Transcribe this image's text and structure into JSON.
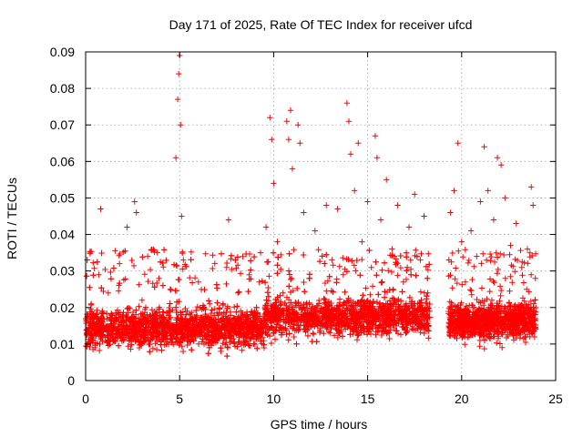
{
  "chart_data": {
    "type": "scatter",
    "title": "Day 171 of 2025, Rate Of TEC Index for receiver ufcd",
    "xlabel": "GPS time / hours",
    "ylabel": "ROTI / TECUs",
    "xlim": [
      0,
      25
    ],
    "ylim": [
      0,
      0.09
    ],
    "x_ticks": [
      0,
      5,
      10,
      15,
      20,
      25
    ],
    "x_tick_labels": [
      "0",
      "5",
      "10",
      "15",
      "20",
      "25"
    ],
    "y_ticks": [
      0,
      0.01,
      0.02,
      0.03,
      0.04,
      0.05,
      0.06,
      0.07,
      0.08,
      0.09
    ],
    "y_tick_labels": [
      "0",
      "0.01",
      "0.02",
      "0.03",
      "0.04",
      "0.05",
      "0.06",
      "0.07",
      "0.08",
      "0.09"
    ],
    "grid": true,
    "marker": "+",
    "color": "#ff0000",
    "data_gap_hours": [
      18.3,
      19.3
    ],
    "series": [
      {
        "name": "ROTI",
        "points": [
          [
            0.1,
            0.013
          ],
          [
            0.3,
            0.021
          ],
          [
            0.5,
            0.009
          ],
          [
            0.7,
            0.029
          ],
          [
            0.8,
            0.047
          ],
          [
            0.9,
            0.016
          ],
          [
            1.2,
            0.024
          ],
          [
            1.5,
            0.011
          ],
          [
            1.8,
            0.032
          ],
          [
            2.0,
            0.018
          ],
          [
            2.2,
            0.042
          ],
          [
            2.5,
            0.014
          ],
          [
            2.6,
            0.049
          ],
          [
            2.7,
            0.046
          ],
          [
            3.0,
            0.022
          ],
          [
            3.3,
            0.034
          ],
          [
            3.6,
            0.012
          ],
          [
            3.9,
            0.028
          ],
          [
            4.2,
            0.015
          ],
          [
            4.5,
            0.025
          ],
          [
            4.8,
            0.061
          ],
          [
            4.9,
            0.077
          ],
          [
            4.95,
            0.084
          ],
          [
            5.0,
            0.089
          ],
          [
            5.05,
            0.07
          ],
          [
            5.1,
            0.045
          ],
          [
            5.2,
            0.033
          ],
          [
            5.4,
            0.019
          ],
          [
            5.7,
            0.013
          ],
          [
            6.0,
            0.027
          ],
          [
            6.3,
            0.01
          ],
          [
            6.6,
            0.021
          ],
          [
            6.9,
            0.016
          ],
          [
            7.2,
            0.008
          ],
          [
            7.5,
            0.031
          ],
          [
            7.6,
            0.044
          ],
          [
            7.8,
            0.014
          ],
          [
            8.1,
            0.024
          ],
          [
            8.4,
            0.011
          ],
          [
            8.7,
            0.029
          ],
          [
            9.0,
            0.019
          ],
          [
            9.3,
            0.035
          ],
          [
            9.6,
            0.042
          ],
          [
            9.8,
            0.072
          ],
          [
            9.9,
            0.066
          ],
          [
            10.0,
            0.054
          ],
          [
            10.2,
            0.038
          ],
          [
            10.5,
            0.024
          ],
          [
            10.7,
            0.071
          ],
          [
            10.8,
            0.066
          ],
          [
            10.9,
            0.074
          ],
          [
            11.0,
            0.058
          ],
          [
            11.3,
            0.07
          ],
          [
            11.4,
            0.065
          ],
          [
            11.6,
            0.046
          ],
          [
            11.9,
            0.028
          ],
          [
            12.2,
            0.041
          ],
          [
            12.5,
            0.019
          ],
          [
            12.8,
            0.048
          ],
          [
            13.1,
            0.033
          ],
          [
            13.4,
            0.047
          ],
          [
            13.7,
            0.029
          ],
          [
            13.9,
            0.076
          ],
          [
            14.0,
            0.071
          ],
          [
            14.1,
            0.062
          ],
          [
            14.3,
            0.052
          ],
          [
            14.5,
            0.065
          ],
          [
            14.7,
            0.038
          ],
          [
            15.0,
            0.049
          ],
          [
            15.2,
            0.031
          ],
          [
            15.4,
            0.067
          ],
          [
            15.5,
            0.061
          ],
          [
            15.7,
            0.044
          ],
          [
            16.0,
            0.055
          ],
          [
            16.3,
            0.036
          ],
          [
            16.6,
            0.048
          ],
          [
            16.9,
            0.027
          ],
          [
            17.2,
            0.042
          ],
          [
            17.5,
            0.051
          ],
          [
            17.8,
            0.033
          ],
          [
            18.0,
            0.045
          ],
          [
            18.2,
            0.024
          ],
          [
            19.4,
            0.046
          ],
          [
            19.6,
            0.052
          ],
          [
            19.8,
            0.065
          ],
          [
            20.0,
            0.038
          ],
          [
            20.2,
            0.027
          ],
          [
            20.5,
            0.041
          ],
          [
            20.8,
            0.034
          ],
          [
            21.0,
            0.049
          ],
          [
            21.2,
            0.064
          ],
          [
            21.4,
            0.052
          ],
          [
            21.7,
            0.044
          ],
          [
            21.9,
            0.061
          ],
          [
            22.1,
            0.059
          ],
          [
            22.3,
            0.05
          ],
          [
            22.6,
            0.037
          ],
          [
            22.9,
            0.043
          ],
          [
            23.2,
            0.031
          ],
          [
            23.5,
            0.036
          ],
          [
            23.7,
            0.053
          ],
          [
            23.8,
            0.048
          ],
          [
            23.9,
            0.022
          ]
        ]
      }
    ]
  }
}
